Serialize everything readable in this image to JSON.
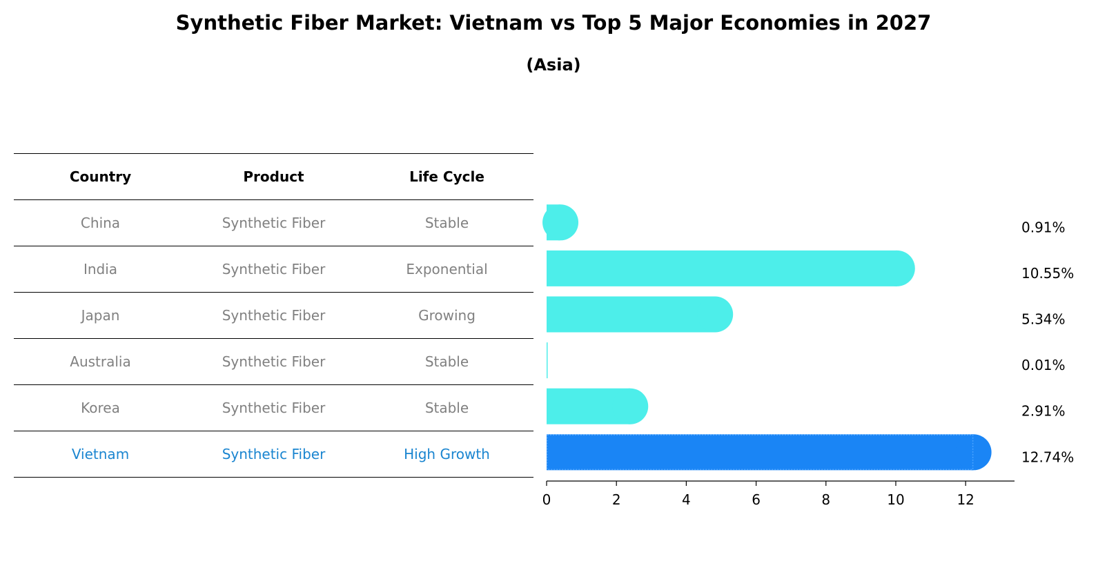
{
  "title": "Synthetic Fiber Market: Vietnam vs Top 5 Major Economies in 2027",
  "subtitle": "(Asia)",
  "table": {
    "headers": [
      "Country",
      "Product",
      "Life Cycle"
    ],
    "rows": [
      {
        "country": "China",
        "product": "Synthetic Fiber",
        "life_cycle": "Stable"
      },
      {
        "country": "India",
        "product": "Synthetic Fiber",
        "life_cycle": "Exponential"
      },
      {
        "country": "Japan",
        "product": "Synthetic Fiber",
        "life_cycle": "Growing"
      },
      {
        "country": "Australia",
        "product": "Synthetic Fiber",
        "life_cycle": "Stable"
      },
      {
        "country": "Korea",
        "product": "Synthetic Fiber",
        "life_cycle": "Stable"
      },
      {
        "country": "Vietnam",
        "product": "Synthetic Fiber",
        "life_cycle": "High Growth"
      }
    ]
  },
  "colors": {
    "bar": "#4deeea",
    "highlight": "#1a85f5",
    "muted_text": "#808080",
    "highlight_text": "#1a85d0"
  },
  "chart_data": {
    "type": "bar",
    "orientation": "horizontal",
    "categories": [
      "China",
      "India",
      "Japan",
      "Australia",
      "Korea",
      "Vietnam"
    ],
    "values": [
      0.91,
      10.55,
      5.34,
      0.01,
      2.91,
      12.74
    ],
    "value_labels": [
      "0.91%",
      "10.55%",
      "5.34%",
      "0.01%",
      "2.91%",
      "12.74%"
    ],
    "highlight": "Vietnam",
    "xlim": [
      0,
      13.4
    ],
    "xticks": [
      0,
      2,
      4,
      6,
      8,
      10,
      12
    ],
    "xlabel": "",
    "ylabel": ""
  }
}
